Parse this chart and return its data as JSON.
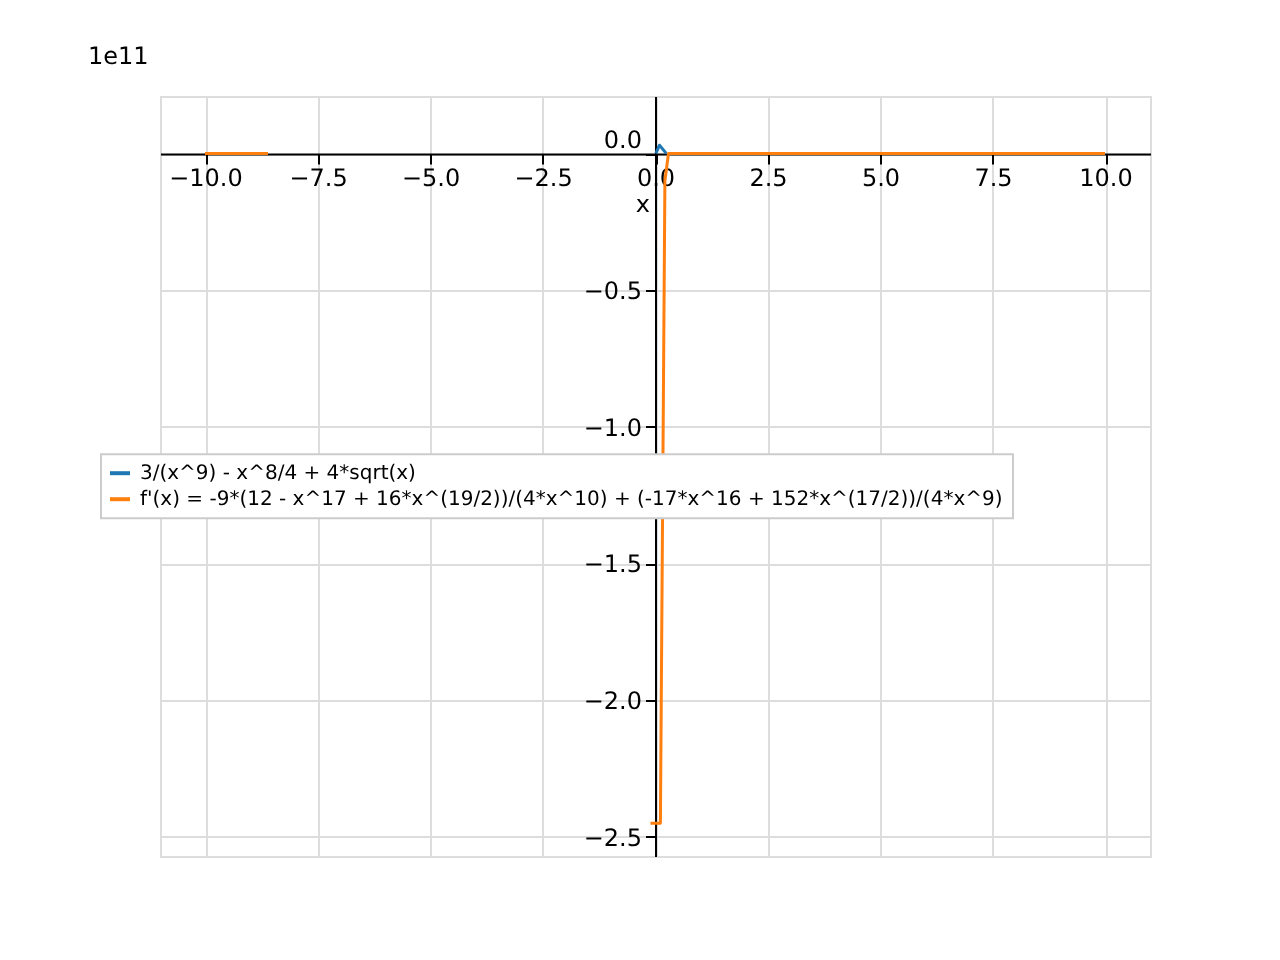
{
  "chart_data": {
    "type": "line",
    "xlabel": "x",
    "annotations": [
      "1e11"
    ],
    "xlim": [
      -11,
      11
    ],
    "ylim": [
      -2.57,
      0.21
    ],
    "xticks": [
      {
        "value": -10,
        "label": "−10.0"
      },
      {
        "value": -7.5,
        "label": "−7.5"
      },
      {
        "value": -5,
        "label": "−5.0"
      },
      {
        "value": -2.5,
        "label": "−2.5"
      },
      {
        "value": 0,
        "label": "0.0"
      },
      {
        "value": 2.5,
        "label": "2.5"
      },
      {
        "value": 5,
        "label": "5.0"
      },
      {
        "value": 7.5,
        "label": "7.5"
      },
      {
        "value": 10,
        "label": "10.0"
      }
    ],
    "yticks": [
      {
        "value": -2.5,
        "label": "−2.5"
      },
      {
        "value": -2,
        "label": "−2.0"
      },
      {
        "value": -1.5,
        "label": "−1.5"
      },
      {
        "value": -1,
        "label": "−1.0"
      },
      {
        "value": -0.5,
        "label": "−0.5"
      },
      {
        "value": 0,
        "label": "0.0"
      }
    ],
    "grid": true,
    "legend": "left",
    "series": [
      {
        "name": "3/(x^9) - x^8/4 + 4*sqrt(x)",
        "color": "#1f77b4",
        "x": [
          0.02,
          0.1,
          0.25
        ],
        "values": [
          0,
          0.03,
          0
        ]
      },
      {
        "name": "f'(x) = -9*(12 - x^17 + 16*x^(19/2))/(4*x^10) + (-17*x^16 + 152*x^(17/2))/(4*x^9)",
        "color": "#ff7f0e",
        "x": [
          -10,
          -8.6,
          -8.5,
          -0.1,
          0.12,
          0.22,
          0.3,
          10
        ],
        "values": [
          0,
          0,
          null,
          -2.45,
          -2.45,
          -0.1,
          0,
          0
        ]
      }
    ]
  }
}
